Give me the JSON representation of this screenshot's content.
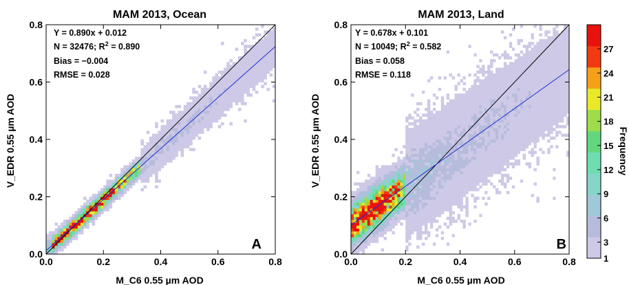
{
  "colors": {
    "one_to_one_line": "#000000",
    "fit_line": "#1f2fd0",
    "axis": "#000000"
  },
  "chart_data": [
    {
      "type": "heatmap",
      "title": "MAM 2013, Ocean",
      "xlabel": "M_C6 0.55 µm AOD",
      "ylabel": "V_EDR 0.55 µm AOD",
      "xlim": [
        0,
        0.8
      ],
      "ylim": [
        0,
        0.8
      ],
      "xticks": [
        "0.0",
        "0.2",
        "0.4",
        "0.6",
        "0.8"
      ],
      "yticks": [
        "0.0",
        "0.2",
        "0.4",
        "0.6",
        "0.8"
      ],
      "panel_letter": "A",
      "stats": {
        "equation": "Y = 0.890x + 0.012",
        "n_r2_prefix": "N = 32476; R",
        "n_r2_exp": "2",
        "n_r2_suffix": " = 0.890",
        "bias": "Bias = −0.004",
        "rmse": "RMSE = 0.028"
      },
      "fit": {
        "slope": 0.89,
        "intercept": 0.012
      },
      "one_to_one": true,
      "density": {
        "x0": 0.02,
        "x1": 0.33,
        "scatter": 0.012,
        "peak_x": 0.12,
        "sparse_x_max": 0.8
      }
    },
    {
      "type": "heatmap",
      "title": "MAM 2013, Land",
      "xlabel": "M_C6 0.55 µm AOD",
      "ylabel": "V_EDR 0.55 µm AOD",
      "xlim": [
        0,
        0.8
      ],
      "ylim": [
        0,
        0.8
      ],
      "xticks": [
        "0.0",
        "0.2",
        "0.4",
        "0.6",
        "0.8"
      ],
      "yticks": [
        "0.0",
        "0.2",
        "0.4",
        "0.6",
        "0.8"
      ],
      "panel_letter": "B",
      "stats": {
        "equation": "Y = 0.678x + 0.101",
        "n_r2_prefix": "N = 10049; R",
        "n_r2_exp": "2",
        "n_r2_suffix": " = 0.582",
        "bias": "Bias = 0.058",
        "rmse": "RMSE = 0.118"
      },
      "fit": {
        "slope": 0.678,
        "intercept": 0.101
      },
      "one_to_one": true,
      "density": {
        "x0": 0.0,
        "x1": 0.2,
        "scatter": 0.05,
        "peak_x": 0.07,
        "sparse_x_max": 0.8
      }
    }
  ],
  "colorbar": {
    "label": "Frequency",
    "ticks": [
      "1",
      "3",
      "6",
      "9",
      "12",
      "15",
      "18",
      "21",
      "24",
      "27"
    ],
    "min": 1,
    "max": 30,
    "colors": [
      "#cdc9e6",
      "#b7bcdc",
      "#9fc8d8",
      "#86d5c9",
      "#6fddb0",
      "#63d77e",
      "#9edc4a",
      "#e9e92a",
      "#f6a019",
      "#f23a12",
      "#e8130d"
    ]
  }
}
